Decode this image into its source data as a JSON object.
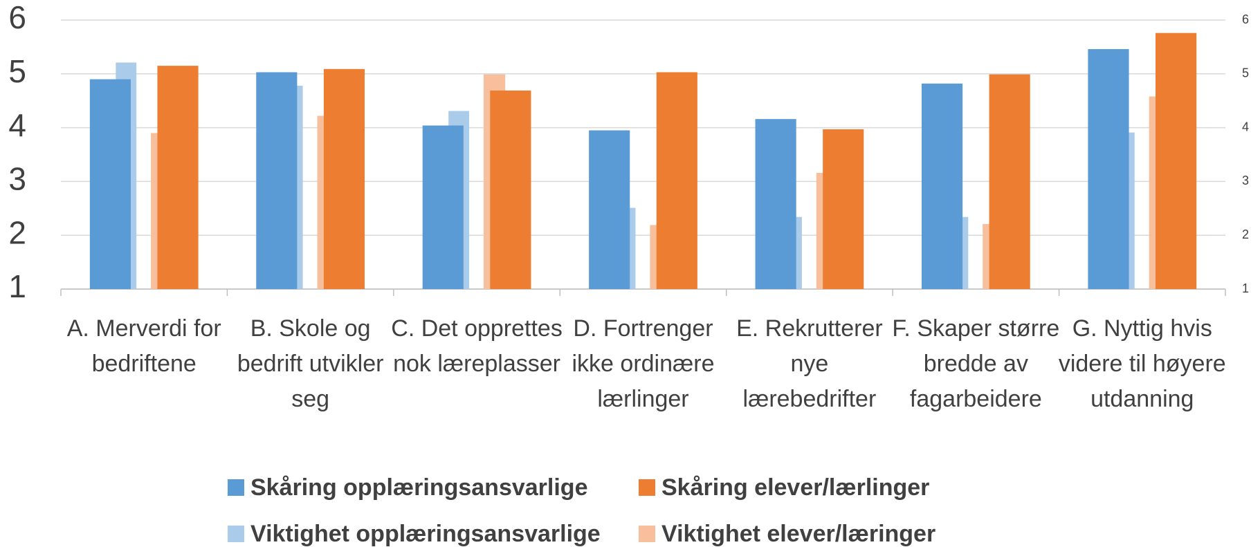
{
  "chart_data": {
    "type": "bar",
    "categories": [
      "A. Merverdi for bedriftene",
      "B. Skole og bedrift utvikler seg",
      "C. Det opprettes nok læreplasser",
      "D. Fortrenger ikke ordinære lærlinger",
      "E. Rekrutterer nye lærebedrifter",
      "F. Skaper større bredde av fagarbeidere",
      "G. Nyttig hvis videre til høyere utdanning"
    ],
    "series": [
      {
        "name": "Skåring opplæringsansvarlige",
        "color": "#5b9bd5",
        "values": [
          4.9,
          5.03,
          4.04,
          3.95,
          4.16,
          4.82,
          5.46
        ]
      },
      {
        "name": "Skåring elever/lærlinger",
        "color": "#ed7d31",
        "values": [
          5.15,
          5.09,
          4.69,
          5.03,
          3.97,
          4.99,
          5.76
        ]
      },
      {
        "name": "Viktighet opplæringsansvarlige",
        "color": "#aacbea",
        "axis": "y2",
        "values": [
          5.21,
          4.78,
          4.31,
          2.51,
          2.34,
          2.34,
          3.91
        ]
      },
      {
        "name": "Viktighet elever/læringer",
        "color": "#f7bf9b",
        "axis": "y2",
        "values": [
          3.9,
          4.22,
          4.99,
          2.19,
          3.16,
          2.21,
          4.58
        ]
      }
    ],
    "ylim": [
      1,
      6
    ],
    "yticks": [
      1,
      2,
      3,
      4,
      5,
      6
    ],
    "y2lim": [
      1,
      6
    ],
    "y2ticks": [
      1,
      2,
      3,
      4,
      5,
      6
    ],
    "grid": true,
    "legend": "bottom"
  }
}
